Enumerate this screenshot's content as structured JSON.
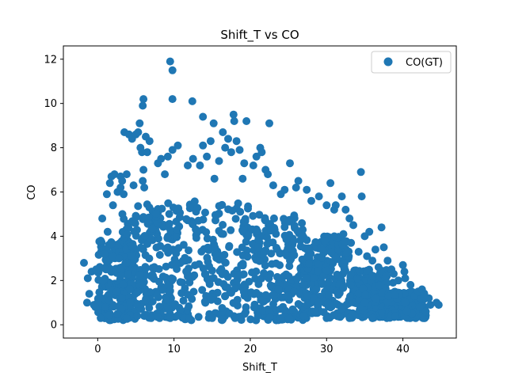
{
  "chart_data": {
    "type": "scatter",
    "title": "Shift_T vs CO",
    "xlabel": "Shift_T",
    "ylabel": "CO",
    "xlim": [
      -4.5,
      47
    ],
    "ylim": [
      -0.6,
      12.6
    ],
    "xticks": [
      0,
      10,
      20,
      30,
      40
    ],
    "yticks": [
      0,
      2,
      4,
      6,
      8,
      10,
      12
    ],
    "grid": false,
    "legend": {
      "location": "upper right"
    },
    "series": [
      {
        "name": "CO(GT)",
        "color": "#1f77b4",
        "marker": "circle",
        "bulk_regions": [
          {
            "x_range": [
              0,
              5
            ],
            "y_range": [
              0.2,
              3.8
            ]
          },
          {
            "x_range": [
              3,
              10
            ],
            "y_range": [
              0.3,
              5.5
            ]
          },
          {
            "x_range": [
              10,
              20
            ],
            "y_range": [
              0.2,
              5.6
            ]
          },
          {
            "x_range": [
              20,
              27
            ],
            "y_range": [
              0.2,
              5.0
            ]
          },
          {
            "x_range": [
              27,
              33
            ],
            "y_range": [
              0.3,
              4.0
            ]
          },
          {
            "x_range": [
              33,
              38
            ],
            "y_range": [
              0.3,
              2.5
            ]
          },
          {
            "x_range": [
              38,
              43
            ],
            "y_range": [
              0.3,
              1.5
            ]
          }
        ],
        "points": [
          [
            -1.8,
            2.8
          ],
          [
            -1.3,
            2.1
          ],
          [
            -1.1,
            1.4
          ],
          [
            -1.4,
            1.0
          ],
          [
            -0.8,
            2.4
          ],
          [
            -0.5,
            0.9
          ],
          [
            0.6,
            4.8
          ],
          [
            0.4,
            3.8
          ],
          [
            0.9,
            3.2
          ],
          [
            1.3,
            4.2
          ],
          [
            1.1,
            2.5
          ],
          [
            -0.2,
            2.5
          ],
          [
            1.2,
            5.9
          ],
          [
            1.6,
            6.4
          ],
          [
            1.8,
            6.7
          ],
          [
            2.2,
            6.8
          ],
          [
            2.6,
            6.0
          ],
          [
            3.4,
            5.9
          ],
          [
            2.0,
            5.4
          ],
          [
            3.0,
            6.7
          ],
          [
            3.8,
            6.8
          ],
          [
            3.2,
            6.5
          ],
          [
            4.7,
            6.3
          ],
          [
            3.0,
            6.2
          ],
          [
            3.5,
            8.7
          ],
          [
            4.1,
            8.6
          ],
          [
            4.5,
            8.4
          ],
          [
            5.0,
            8.6
          ],
          [
            5.3,
            8.7
          ],
          [
            5.5,
            9.1
          ],
          [
            5.8,
            7.8
          ],
          [
            5.6,
            8.0
          ],
          [
            6.0,
            7.0
          ],
          [
            6.5,
            7.8
          ],
          [
            6.8,
            8.3
          ],
          [
            6.3,
            8.5
          ],
          [
            5.9,
            9.9
          ],
          [
            6.0,
            10.2
          ],
          [
            6.1,
            6.2
          ],
          [
            5.9,
            6.5
          ],
          [
            7.9,
            7.3
          ],
          [
            8.3,
            7.5
          ],
          [
            8.8,
            6.8
          ],
          [
            9.2,
            7.6
          ],
          [
            9.8,
            7.9
          ],
          [
            10.5,
            8.1
          ],
          [
            9.5,
            11.9
          ],
          [
            9.8,
            11.5
          ],
          [
            9.8,
            10.2
          ],
          [
            12.4,
            10.1
          ],
          [
            13.8,
            9.4
          ],
          [
            15.2,
            9.1
          ],
          [
            11.8,
            7.2
          ],
          [
            12.5,
            7.5
          ],
          [
            13.4,
            7.2
          ],
          [
            13.8,
            8.1
          ],
          [
            14.3,
            7.6
          ],
          [
            14.8,
            8.3
          ],
          [
            15.3,
            6.6
          ],
          [
            15.9,
            7.4
          ],
          [
            16.4,
            8.7
          ],
          [
            16.7,
            8.0
          ],
          [
            17.1,
            8.4
          ],
          [
            17.5,
            7.8
          ],
          [
            17.8,
            9.5
          ],
          [
            17.9,
            9.2
          ],
          [
            18.2,
            8.3
          ],
          [
            18.6,
            7.9
          ],
          [
            19.2,
            7.3
          ],
          [
            19.0,
            6.6
          ],
          [
            19.5,
            9.2
          ],
          [
            20.4,
            7.2
          ],
          [
            20.8,
            7.6
          ],
          [
            21.3,
            8.0
          ],
          [
            21.5,
            7.8
          ],
          [
            22.0,
            7.0
          ],
          [
            22.5,
            9.1
          ],
          [
            22.3,
            6.8
          ],
          [
            23.0,
            6.3
          ],
          [
            24.0,
            5.9
          ],
          [
            24.5,
            6.1
          ],
          [
            25.2,
            7.3
          ],
          [
            26.0,
            6.2
          ],
          [
            26.3,
            6.5
          ],
          [
            27.4,
            6.1
          ],
          [
            28.0,
            5.6
          ],
          [
            29.0,
            5.8
          ],
          [
            30.0,
            5.4
          ],
          [
            31.0,
            5.2
          ],
          [
            30.5,
            6.4
          ],
          [
            31.2,
            5.4
          ],
          [
            32.0,
            5.8
          ],
          [
            32.5,
            5.2
          ],
          [
            33.0,
            4.8
          ],
          [
            34.5,
            6.9
          ],
          [
            34.6,
            5.8
          ],
          [
            33.5,
            4.5
          ],
          [
            35.0,
            4.0
          ],
          [
            35.6,
            4.2
          ],
          [
            36.4,
            3.4
          ],
          [
            37.2,
            4.4
          ],
          [
            37.5,
            3.5
          ],
          [
            38.0,
            2.9
          ],
          [
            38.5,
            2.5
          ],
          [
            38.8,
            2.3
          ],
          [
            39.4,
            2.0
          ],
          [
            40.0,
            2.7
          ],
          [
            40.2,
            2.4
          ],
          [
            40.3,
            2.1
          ],
          [
            41.0,
            1.8
          ],
          [
            41.5,
            1.3
          ],
          [
            42.0,
            1.5
          ],
          [
            42.5,
            1.6
          ],
          [
            42.8,
            1.4
          ],
          [
            43.4,
            1.2
          ],
          [
            44.4,
            1.0
          ],
          [
            44.7,
            0.9
          ],
          [
            43.0,
            0.6
          ],
          [
            41.2,
            0.5
          ],
          [
            40.5,
            0.6
          ],
          [
            42.2,
            0.8
          ],
          [
            43.6,
            0.9
          ],
          [
            38.7,
            1.9
          ],
          [
            37.9,
            2.2
          ],
          [
            36.8,
            2.6
          ],
          [
            36.0,
            2.9
          ],
          [
            35.3,
            3.1
          ],
          [
            34.2,
            3.3
          ],
          [
            33.2,
            3.7
          ],
          [
            32.2,
            4.1
          ],
          [
            2.6,
            0.5
          ],
          [
            3.8,
            0.3
          ],
          [
            5.2,
            0.4
          ],
          [
            7.0,
            0.3
          ],
          [
            9.5,
            0.3
          ],
          [
            12.0,
            0.3
          ],
          [
            15.0,
            0.3
          ],
          [
            18.0,
            0.3
          ],
          [
            21.0,
            0.4
          ],
          [
            24.0,
            0.3
          ],
          [
            27.0,
            0.4
          ],
          [
            30.0,
            0.3
          ],
          [
            33.0,
            0.3
          ],
          [
            36.0,
            0.3
          ],
          [
            39.0,
            0.4
          ],
          [
            2.0,
            0.9
          ],
          [
            1.5,
            1.1
          ],
          [
            1.0,
            0.8
          ],
          [
            0.5,
            1.2
          ],
          [
            0.0,
            1.0
          ],
          [
            -0.3,
            0.8
          ],
          [
            2.5,
            1.5
          ],
          [
            3.0,
            2.2
          ],
          [
            2.8,
            3.0
          ]
        ]
      }
    ]
  }
}
